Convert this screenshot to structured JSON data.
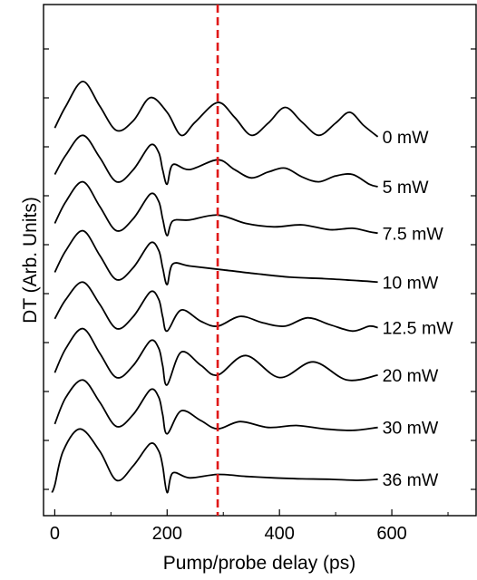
{
  "chart_data": {
    "type": "line",
    "title": "",
    "xlabel": "Pump/probe delay (ps)",
    "ylabel": "DT (Arb. Units)",
    "xlim": [
      -20,
      750
    ],
    "xticks": [
      0,
      200,
      400,
      600
    ],
    "xtick_labels": [
      "0",
      "200",
      "400",
      "600"
    ],
    "y_ticks_labeled": false,
    "grid": false,
    "legend": "none",
    "marker_line": {
      "x": 290,
      "color": "#e01818",
      "style": "dashed"
    },
    "line_color": "#000000",
    "series": [
      {
        "name": "0 mW",
        "offset": 7,
        "x": [
          0,
          20,
          50,
          80,
          110,
          140,
          170,
          200,
          225,
          250,
          290,
          320,
          350,
          380,
          410,
          440,
          470,
          500,
          525,
          550,
          575
        ],
        "y": [
          0.2,
          0.65,
          1.15,
          0.65,
          0.15,
          0.35,
          0.82,
          0.52,
          0.05,
          0.32,
          0.72,
          0.42,
          0.05,
          0.3,
          0.62,
          0.32,
          0.05,
          0.3,
          0.52,
          0.25,
          0.02
        ]
      },
      {
        "name": "5 mW",
        "offset": 6,
        "x": [
          0,
          20,
          50,
          80,
          110,
          140,
          170,
          185,
          192,
          200,
          210,
          240,
          290,
          320,
          350,
          380,
          410,
          440,
          470,
          500,
          530,
          560,
          575
        ],
        "y": [
          0.25,
          0.65,
          1.05,
          0.6,
          0.1,
          0.35,
          0.85,
          0.7,
          0.35,
          0.05,
          0.45,
          0.35,
          0.55,
          0.35,
          0.18,
          0.3,
          0.38,
          0.2,
          0.1,
          0.22,
          0.25,
          0.05,
          0.0
        ]
      },
      {
        "name": "7.5 mW",
        "offset": 5,
        "x": [
          0,
          20,
          50,
          80,
          110,
          140,
          170,
          185,
          192,
          200,
          210,
          240,
          290,
          340,
          390,
          440,
          490,
          530,
          560,
          575
        ],
        "y": [
          0.25,
          0.7,
          1.1,
          0.6,
          0.1,
          0.35,
          0.85,
          0.7,
          0.35,
          0.0,
          0.3,
          0.32,
          0.42,
          0.25,
          0.18,
          0.22,
          0.12,
          0.15,
          0.08,
          0.05
        ]
      },
      {
        "name": "10 mW",
        "offset": 4,
        "x": [
          0,
          20,
          50,
          80,
          110,
          140,
          170,
          185,
          192,
          200,
          210,
          240,
          300,
          360,
          420,
          480,
          540,
          575
        ],
        "y": [
          0.25,
          0.7,
          1.1,
          0.6,
          0.1,
          0.35,
          0.85,
          0.7,
          0.35,
          0.0,
          0.42,
          0.38,
          0.3,
          0.22,
          0.15,
          0.12,
          0.08,
          0.05
        ]
      },
      {
        "name": "12.5 mW",
        "offset": 3,
        "x": [
          0,
          20,
          50,
          80,
          110,
          140,
          170,
          185,
          192,
          200,
          225,
          260,
          290,
          330,
          370,
          410,
          450,
          490,
          530,
          560,
          575
        ],
        "y": [
          0.3,
          0.7,
          1.05,
          0.6,
          0.1,
          0.35,
          0.85,
          0.7,
          0.35,
          0.05,
          0.48,
          0.25,
          0.15,
          0.35,
          0.22,
          0.15,
          0.32,
          0.18,
          0.05,
          0.15,
          0.12
        ]
      },
      {
        "name": "20 mW",
        "offset": 2,
        "x": [
          0,
          20,
          50,
          80,
          110,
          140,
          170,
          185,
          192,
          200,
          225,
          260,
          290,
          340,
          400,
          460,
          520,
          575
        ],
        "y": [
          0.2,
          0.7,
          1.1,
          0.6,
          0.1,
          0.35,
          0.85,
          0.7,
          0.35,
          -0.05,
          0.62,
          0.35,
          0.15,
          0.55,
          0.1,
          0.42,
          0.05,
          0.15
        ]
      },
      {
        "name": "30 mW",
        "offset": 1,
        "x": [
          0,
          20,
          50,
          80,
          110,
          140,
          170,
          185,
          192,
          200,
          225,
          260,
          290,
          330,
          380,
          430,
          480,
          530,
          575
        ],
        "y": [
          0.15,
          0.7,
          1.05,
          0.6,
          0.1,
          0.35,
          0.85,
          0.7,
          0.35,
          -0.05,
          0.42,
          0.22,
          0.05,
          0.2,
          0.08,
          0.12,
          0.05,
          0.02,
          0.08
        ]
      },
      {
        "name": "36 mW",
        "offset": 0,
        "x": [
          -5,
          0,
          15,
          45,
          80,
          110,
          140,
          170,
          185,
          192,
          200,
          210,
          240,
          290,
          340,
          390,
          440,
          490,
          540,
          575
        ],
        "y": [
          -0.25,
          -0.1,
          0.6,
          1.05,
          0.6,
          0.0,
          0.3,
          0.75,
          0.6,
          0.3,
          -0.25,
          0.15,
          0.05,
          0.12,
          0.08,
          0.05,
          0.03,
          0.02,
          0.0,
          0.02
        ]
      }
    ]
  }
}
